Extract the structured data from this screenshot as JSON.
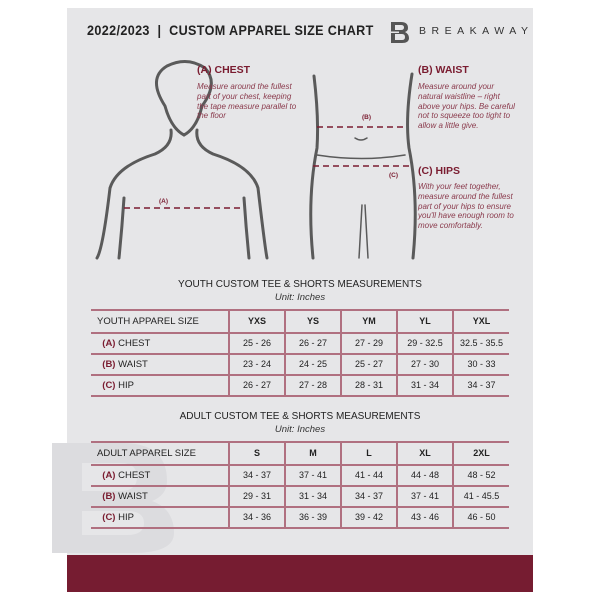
{
  "header": {
    "title": "2022/2023  |  CUSTOM APPAREL SIZE CHART",
    "brand": "BREAKAWAY",
    "brand_mark": "B"
  },
  "measure": {
    "chest": {
      "heading": "(A) CHEST",
      "text": "Measure around the fullest part of your chest, keeping the tape measure parallel to the floor",
      "tag": "(A)"
    },
    "waist": {
      "heading": "(B) WAIST",
      "text": "Measure around your natural waistline – right above your hips. Be careful not to squeeze too tight to allow a little give.",
      "tag": "(B)"
    },
    "hips": {
      "heading": "(C) HIPS",
      "text": "With your feet together, measure around the fullest part of your hips to ensure you'll have enough room to move comfortably.",
      "tag": "(C)"
    }
  },
  "youth": {
    "title": "YOUTH CUSTOM TEE & SHORTS MEASUREMENTS",
    "unit": "Unit: Inches",
    "header": [
      "YOUTH APPAREL SIZE",
      "YXS",
      "YS",
      "YM",
      "YL",
      "YXL"
    ],
    "rows": [
      {
        "letter": "(A)",
        "name": "CHEST",
        "values": [
          "25 - 26",
          "26 - 27",
          "27 - 29",
          "29 - 32.5",
          "32.5 - 35.5"
        ]
      },
      {
        "letter": "(B)",
        "name": "WAIST",
        "values": [
          "23 - 24",
          "24 - 25",
          "25 - 27",
          "27 - 30",
          "30 - 33"
        ]
      },
      {
        "letter": "(C)",
        "name": "HIP",
        "values": [
          "26 - 27",
          "27 - 28",
          "28 - 31",
          "31 - 34",
          "34 - 37"
        ]
      }
    ]
  },
  "adult": {
    "title": "ADULT CUSTOM TEE & SHORTS MEASUREMENTS",
    "unit": "Unit: Inches",
    "header": [
      "ADULT APPAREL SIZE",
      "S",
      "M",
      "L",
      "XL",
      "2XL"
    ],
    "rows": [
      {
        "letter": "(A)",
        "name": "CHEST",
        "values": [
          "34 - 37",
          "37 - 41",
          "41 - 44",
          "44 - 48",
          "48 - 52"
        ]
      },
      {
        "letter": "(B)",
        "name": "WAIST",
        "values": [
          "29 - 31",
          "31 - 34",
          "34 - 37",
          "37 - 41",
          "41 - 45.5"
        ]
      },
      {
        "letter": "(C)",
        "name": "HIP",
        "values": [
          "34 - 36",
          "36 - 39",
          "39 - 42",
          "43 - 46",
          "46 - 50"
        ]
      }
    ]
  },
  "colors": {
    "accent": "#761c31",
    "panel": "#e6e6e8"
  }
}
